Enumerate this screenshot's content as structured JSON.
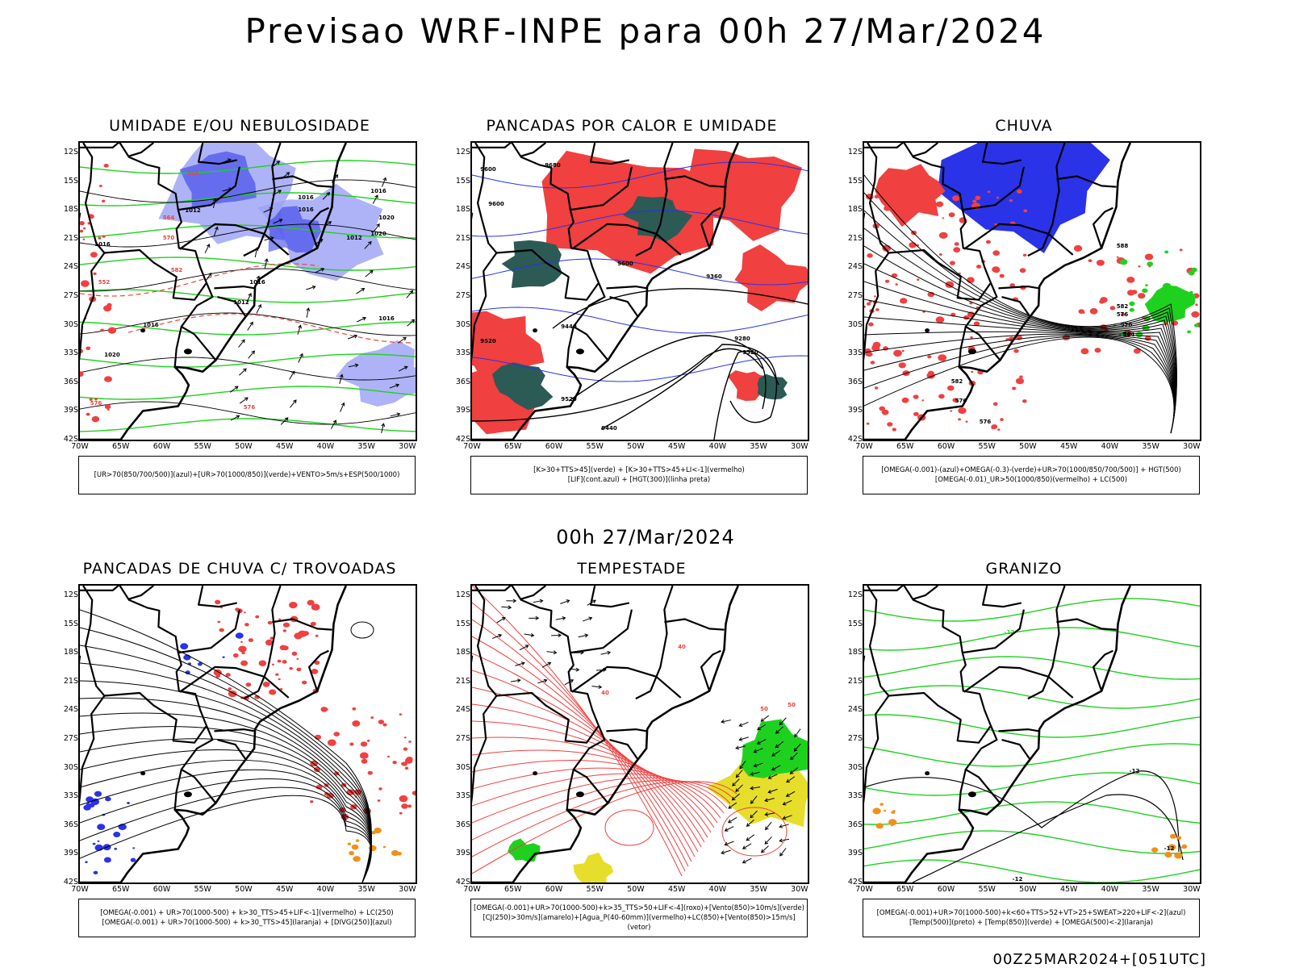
{
  "header": {
    "title": "Previsao WRF-INPE  para 00h 27/Mar/2024",
    "mid_title": "00h 27/Mar/2024",
    "footer": "00Z25MAR2024+[051UTC]"
  },
  "axes": {
    "lat_labels": [
      "12S",
      "15S",
      "18S",
      "21S",
      "24S",
      "27S",
      "30S",
      "33S",
      "36S",
      "39S",
      "42S"
    ],
    "lon_labels": [
      "70W",
      "65W",
      "60W",
      "55W",
      "50W",
      "45W",
      "40W",
      "35W",
      "30W"
    ]
  },
  "colors": {
    "blue": "#2a33e8",
    "lavender": "#9aa0f5",
    "green": "#1fd11f",
    "red": "#f04040",
    "darkgreen": "#2c5a55",
    "yellow": "#e6de2a",
    "orange": "#f0901a"
  },
  "panels": [
    {
      "id": "umidade",
      "title": "UMIDADE E/OU NEBULOSIDADE",
      "legend": [
        "[UR>70(850/700/500)](azul)+[UR>70(1000/850)](verde)+VENTO>5m/s+ESP(500/1000)"
      ],
      "labels": [
        "1016",
        "1016",
        "1016",
        "1012",
        "1012",
        "1020",
        "1016",
        "1016",
        "1020",
        "1016",
        "1012",
        "1020",
        "1016",
        "576",
        "570",
        "564",
        "558",
        "582",
        "576",
        "552"
      ]
    },
    {
      "id": "pancadas-calor",
      "title": "PANCADAS POR CALOR E UMIDADE",
      "legend": [
        "[K>30+TTS>45](verde)  +  [K>30+TTS>45+LI<-1](vermelho)",
        "[LIF](cont.azul)  +  [HGT(300)](linha preta)"
      ],
      "labels": [
        "9600",
        "9680",
        "9600",
        "9520",
        "9600",
        "9520",
        "9360",
        "9280",
        "9520",
        "9440",
        "9440"
      ]
    },
    {
      "id": "chuva",
      "title": "CHUVA",
      "legend": [
        "[OMEGA(-0.001)-(azul)+OMEGA(-0.3)-(verde)+UR>70(1000/850/700/500)]  +  HGT(500)",
        "[OMEGA(-0.01)_UR>50(1000/850)(vermelho)  +  LC(500)"
      ],
      "labels": [
        "588",
        "582",
        "576",
        "570",
        "564",
        "582",
        "576",
        "576"
      ]
    },
    {
      "id": "pancadas-trovoadas",
      "title": "PANCADAS DE CHUVA C/ TROVOADAS",
      "legend": [
        "[OMEGA(-0.001)  +  UR>70(1000-500)  +  k>30_TTS>45+LIF<-1](vermelho)  +  LC(250)",
        "[OMEGA(-0.001)  +  UR>70(1000-500)  +  k>30_TTS>45](laranja)  +  [DIVG(250)](azul)"
      ],
      "labels": []
    },
    {
      "id": "tempestade",
      "title": "TEMPESTADE",
      "legend": [
        "[OMEGA(-0.001)+UR>70(1000-500)+k>35_TTS>50+LIF<-4](roxo)+[Vento(850)>10m/s](verde)",
        "[CJ(250)>30m/s](amarelo)+[Agua_P(40-60mm)](vermelho)+LC(850)+[Vento(850)>15m/s](vetor)"
      ],
      "labels": [
        "40",
        "50",
        "50",
        "40"
      ]
    },
    {
      "id": "granizo",
      "title": "GRANIZO",
      "legend": [
        "[OMEGA(-0.001)+UR>70(1000-500)+k<60+TTS>52+VT>25+SWEAT>220+LIF<-2](azul)",
        "[Temp(500)](preto)  +  [Temp(850)](verde)  +  [OMEGA(500)<-2](laranja)"
      ],
      "labels": [
        "-12",
        "-12",
        "-12",
        "-12"
      ]
    }
  ]
}
